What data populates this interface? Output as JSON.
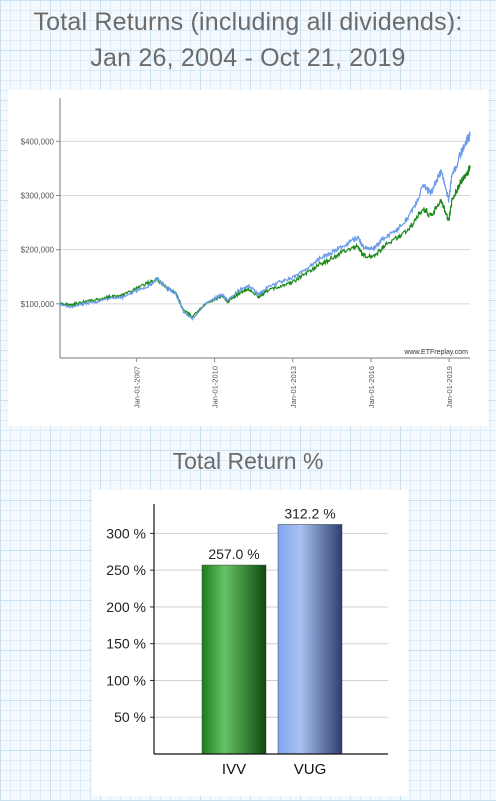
{
  "header": {
    "title_line1": "Total Returns (including all dividends):",
    "title_line2": "Jan 26, 2004 - Oct 21, 2019"
  },
  "section2_title": "Total Return %",
  "chart_data": [
    {
      "type": "line",
      "title": "Total Returns (including all dividends): Jan 26, 2004 - Oct 21, 2019",
      "xlabel": "",
      "ylabel": "",
      "x_ticks": [
        "Jan-01-2007",
        "Jan-01-2010",
        "Jan-01-2013",
        "Jan-01-2016",
        "Jan-01-2019"
      ],
      "y_ticks": [
        "$100,000",
        "$200,000",
        "$300,000",
        "$400,000"
      ],
      "ylim": [
        0,
        480000
      ],
      "xlim": [
        2004.07,
        2019.8
      ],
      "watermark": "www.ETFreplay.com",
      "grid": "horizontal",
      "series": [
        {
          "name": "IVV",
          "color": "#1a8a1a",
          "points": [
            [
              2004.07,
              100000
            ],
            [
              2004.5,
              98000
            ],
            [
              2005.0,
              104000
            ],
            [
              2005.5,
              108000
            ],
            [
              2006.0,
              113000
            ],
            [
              2006.5,
              116000
            ],
            [
              2007.0,
              128000
            ],
            [
              2007.5,
              140000
            ],
            [
              2007.8,
              145000
            ],
            [
              2008.2,
              128000
            ],
            [
              2008.5,
              120000
            ],
            [
              2008.8,
              90000
            ],
            [
              2009.15,
              76000
            ],
            [
              2009.6,
              98000
            ],
            [
              2010.0,
              108000
            ],
            [
              2010.3,
              116000
            ],
            [
              2010.5,
              104000
            ],
            [
              2010.9,
              118000
            ],
            [
              2011.3,
              128000
            ],
            [
              2011.7,
              112000
            ],
            [
              2012.0,
              124000
            ],
            [
              2012.5,
              132000
            ],
            [
              2013.0,
              140000
            ],
            [
              2013.5,
              156000
            ],
            [
              2014.0,
              172000
            ],
            [
              2014.5,
              184000
            ],
            [
              2015.0,
              198000
            ],
            [
              2015.5,
              206000
            ],
            [
              2015.7,
              190000
            ],
            [
              2016.1,
              186000
            ],
            [
              2016.5,
              206000
            ],
            [
              2017.0,
              222000
            ],
            [
              2017.5,
              240000
            ],
            [
              2018.0,
              278000
            ],
            [
              2018.3,
              262000
            ],
            [
              2018.7,
              292000
            ],
            [
              2018.98,
              252000
            ],
            [
              2019.1,
              288000
            ],
            [
              2019.4,
              322000
            ],
            [
              2019.6,
              336000
            ],
            [
              2019.8,
              350000
            ]
          ]
        },
        {
          "name": "VUG",
          "color": "#6a9ae8",
          "points": [
            [
              2004.07,
              100000
            ],
            [
              2004.5,
              94000
            ],
            [
              2005.0,
              100000
            ],
            [
              2005.5,
              104000
            ],
            [
              2006.0,
              110000
            ],
            [
              2006.5,
              112000
            ],
            [
              2007.0,
              124000
            ],
            [
              2007.5,
              134000
            ],
            [
              2007.8,
              146000
            ],
            [
              2008.2,
              128000
            ],
            [
              2008.5,
              120000
            ],
            [
              2008.8,
              86000
            ],
            [
              2009.15,
              72000
            ],
            [
              2009.6,
              98000
            ],
            [
              2010.0,
              110000
            ],
            [
              2010.3,
              118000
            ],
            [
              2010.5,
              106000
            ],
            [
              2010.9,
              124000
            ],
            [
              2011.3,
              134000
            ],
            [
              2011.7,
              116000
            ],
            [
              2012.0,
              130000
            ],
            [
              2012.5,
              140000
            ],
            [
              2013.0,
              148000
            ],
            [
              2013.5,
              164000
            ],
            [
              2014.0,
              182000
            ],
            [
              2014.5,
              194000
            ],
            [
              2015.0,
              210000
            ],
            [
              2015.5,
              222000
            ],
            [
              2015.7,
              206000
            ],
            [
              2016.1,
              200000
            ],
            [
              2016.5,
              222000
            ],
            [
              2017.0,
              236000
            ],
            [
              2017.5,
              264000
            ],
            [
              2018.0,
              318000
            ],
            [
              2018.3,
              304000
            ],
            [
              2018.7,
              346000
            ],
            [
              2018.98,
              292000
            ],
            [
              2019.1,
              336000
            ],
            [
              2019.4,
              372000
            ],
            [
              2019.6,
              396000
            ],
            [
              2019.8,
              410000
            ]
          ]
        }
      ]
    },
    {
      "type": "bar",
      "title": "Total Return %",
      "categories": [
        "IVV",
        "VUG"
      ],
      "values": [
        257.0,
        312.2
      ],
      "value_labels": [
        "257.0 %",
        "312.2 %"
      ],
      "y_ticks": [
        "50 %",
        "100 %",
        "150 %",
        "200 %",
        "250 %",
        "300 %"
      ],
      "ylim": [
        0,
        340
      ],
      "colors": [
        "#1f8a1f",
        "#5b7fc8"
      ],
      "grid": "horizontal"
    }
  ]
}
